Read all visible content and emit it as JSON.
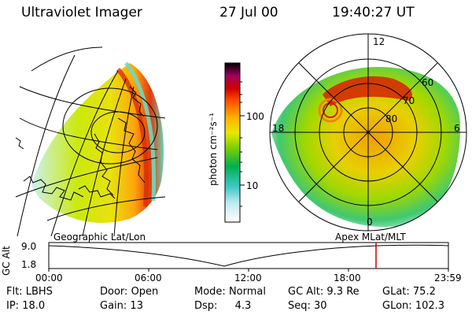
{
  "header": {
    "title": "Ultraviolet Imager",
    "date": "27 Jul 00",
    "time": "19:40:27 UT"
  },
  "colorbar": {
    "unit_label": "photon cm⁻²s⁻¹",
    "ticks": [
      "100",
      "10"
    ]
  },
  "left_panel": {
    "caption": "Geographic Lat/Lon"
  },
  "right_panel": {
    "caption": "Apex MLat/MLT",
    "mlt_labels": [
      "12",
      "18",
      "6",
      "0"
    ],
    "lat_labels": [
      "60",
      "70",
      "80"
    ]
  },
  "altitude_plot": {
    "axis_label": "GC Alt",
    "y_ticks": [
      "9.0",
      "1.8"
    ],
    "x_ticks": [
      "00:00",
      "06:00",
      "12:00",
      "18:00",
      "23:59"
    ],
    "marker_color": "#cc0000"
  },
  "status": {
    "row1": [
      {
        "label": "Flt:",
        "value": "LBHS"
      },
      {
        "label": "Door:",
        "value": "Open"
      },
      {
        "label": "Mode:",
        "value": "Normal"
      },
      {
        "label": "GC Alt:",
        "value": "9.3 Re"
      },
      {
        "label": "GLat:",
        "value": "75.2"
      }
    ],
    "row2": [
      {
        "label": "IP:",
        "value": "18.0"
      },
      {
        "label": "Gain:",
        "value": "13"
      },
      {
        "label": "Dsp:",
        "value": "4.3"
      },
      {
        "label": "Seq:",
        "value": "30"
      },
      {
        "label": "GLon:",
        "value": "102.3"
      }
    ]
  },
  "colors": {
    "aurora_low": "#b9ecec",
    "aurora_mid": "#9fd800",
    "aurora_high": "#ffa000",
    "aurora_peak": "#d00000"
  }
}
